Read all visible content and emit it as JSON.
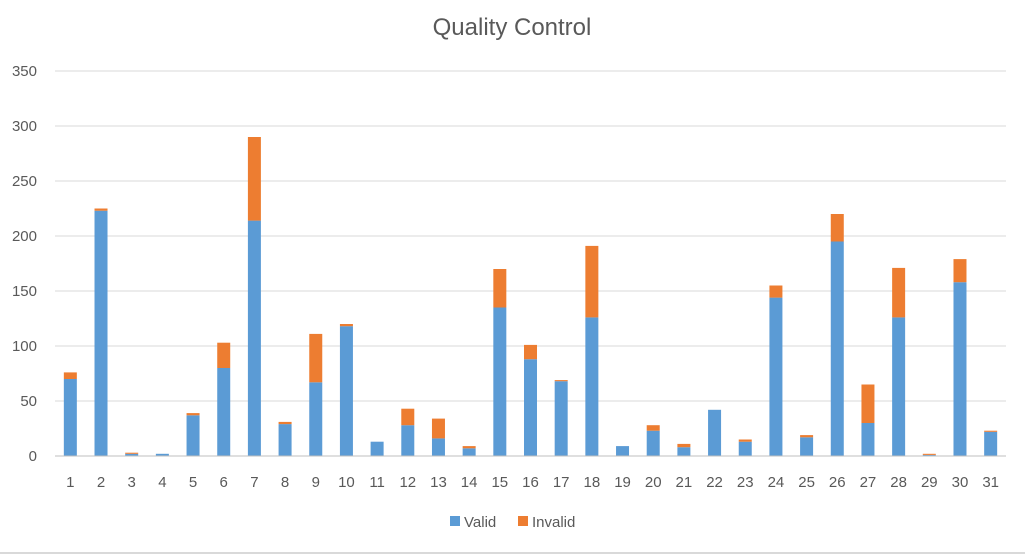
{
  "chart_data": {
    "type": "bar",
    "stacked": true,
    "title": "Quality Control",
    "xlabel": "",
    "ylabel": "",
    "ylim": [
      0,
      350
    ],
    "yticks": [
      0,
      50,
      100,
      150,
      200,
      250,
      300,
      350
    ],
    "grid": true,
    "legend_position": "bottom",
    "categories": [
      "1",
      "2",
      "3",
      "4",
      "5",
      "6",
      "7",
      "8",
      "9",
      "10",
      "11",
      "12",
      "13",
      "14",
      "15",
      "16",
      "17",
      "18",
      "19",
      "20",
      "21",
      "22",
      "23",
      "24",
      "25",
      "26",
      "27",
      "28",
      "29",
      "30",
      "31"
    ],
    "series": [
      {
        "name": "Valid",
        "color": "#5b9bd5",
        "values": [
          70,
          223,
          2,
          2,
          37,
          80,
          214,
          29,
          67,
          118,
          13,
          28,
          16,
          7,
          135,
          88,
          68,
          126,
          9,
          23,
          8,
          42,
          13,
          144,
          17,
          195,
          30,
          126,
          1,
          158,
          22
        ]
      },
      {
        "name": "Invalid",
        "color": "#ed7d31",
        "values": [
          6,
          2,
          1,
          0,
          2,
          23,
          76,
          2,
          44,
          2,
          0,
          15,
          18,
          2,
          35,
          13,
          1,
          65,
          0,
          5,
          3,
          0,
          2,
          11,
          2,
          25,
          35,
          45,
          1,
          21,
          1
        ]
      }
    ]
  }
}
